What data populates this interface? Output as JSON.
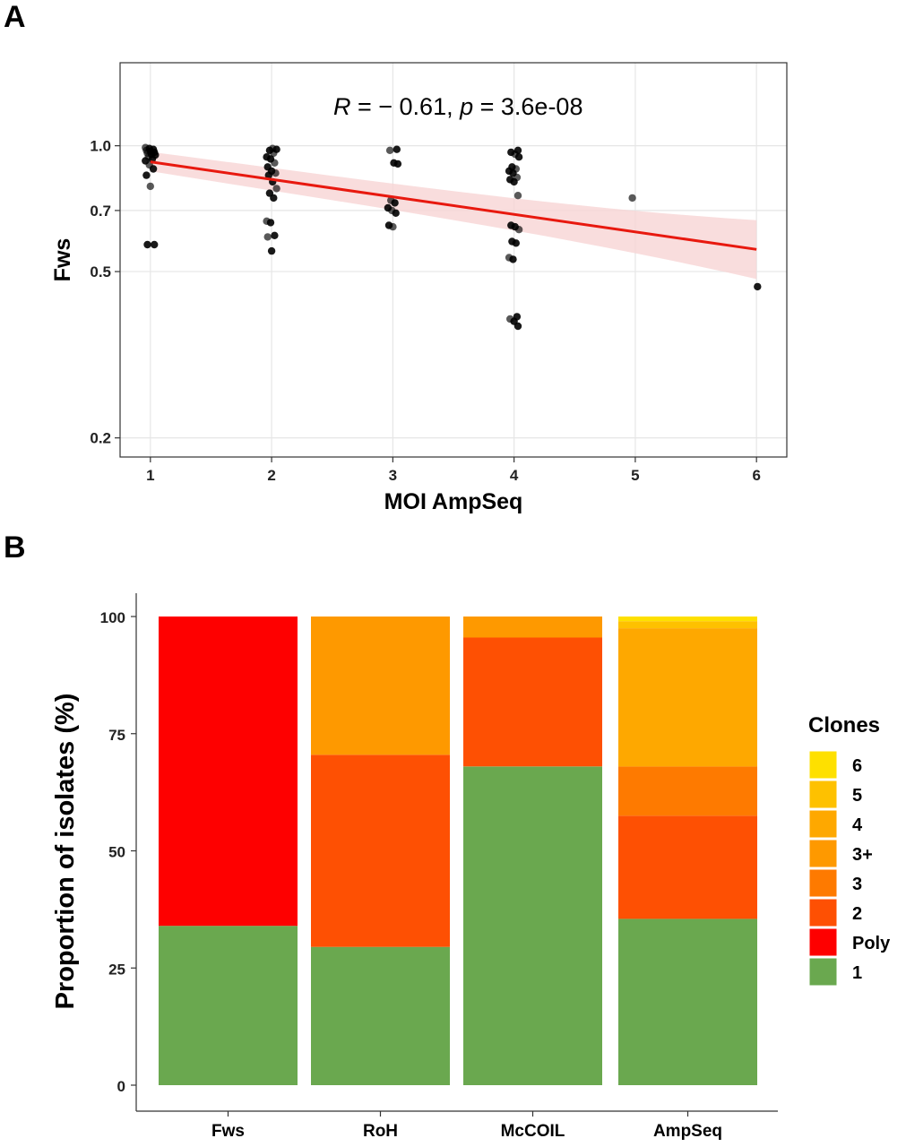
{
  "chart_data": [
    {
      "type": "scatter",
      "panel_label": "A",
      "xlabel": "MOI AmpSeq",
      "ylabel": "Fws",
      "y_scale": "log",
      "xlim": [
        0.75,
        6.25
      ],
      "ylim": [
        0.18,
        1.58
      ],
      "x_ticks": [
        1,
        2,
        3,
        4,
        5,
        6
      ],
      "y_ticks": [
        0.2,
        0.5,
        0.7,
        1.0
      ],
      "y_tick_labels": [
        "0.2",
        "0.5",
        "0.7",
        "1.0"
      ],
      "grid": true,
      "annotation": {
        "r_symbol": "R",
        "r_text": " = − 0.61, ",
        "p_symbol": "p",
        "p_text": " = 3.6e-08"
      },
      "points": [
        {
          "x": 1,
          "y": 0.99
        },
        {
          "x": 1,
          "y": 0.985
        },
        {
          "x": 1,
          "y": 0.98
        },
        {
          "x": 1,
          "y": 0.975
        },
        {
          "x": 1,
          "y": 0.97
        },
        {
          "x": 1,
          "y": 0.965
        },
        {
          "x": 1,
          "y": 0.96
        },
        {
          "x": 1,
          "y": 0.955
        },
        {
          "x": 1,
          "y": 0.95
        },
        {
          "x": 1,
          "y": 0.94
        },
        {
          "x": 1,
          "y": 0.93
        },
        {
          "x": 1,
          "y": 0.92
        },
        {
          "x": 1,
          "y": 0.9
        },
        {
          "x": 1,
          "y": 0.88
        },
        {
          "x": 1,
          "y": 0.85
        },
        {
          "x": 1,
          "y": 0.8
        },
        {
          "x": 1,
          "y": 0.58
        },
        {
          "x": 1,
          "y": 0.58
        },
        {
          "x": 2,
          "y": 0.985
        },
        {
          "x": 2,
          "y": 0.98
        },
        {
          "x": 2,
          "y": 0.975
        },
        {
          "x": 2,
          "y": 0.96
        },
        {
          "x": 2,
          "y": 0.94
        },
        {
          "x": 2,
          "y": 0.93
        },
        {
          "x": 2,
          "y": 0.91
        },
        {
          "x": 2,
          "y": 0.89
        },
        {
          "x": 2,
          "y": 0.87
        },
        {
          "x": 2,
          "y": 0.86
        },
        {
          "x": 2,
          "y": 0.85
        },
        {
          "x": 2,
          "y": 0.82
        },
        {
          "x": 2,
          "y": 0.79
        },
        {
          "x": 2,
          "y": 0.77
        },
        {
          "x": 2,
          "y": 0.75
        },
        {
          "x": 2,
          "y": 0.66
        },
        {
          "x": 2,
          "y": 0.655
        },
        {
          "x": 2,
          "y": 0.61
        },
        {
          "x": 2,
          "y": 0.605
        },
        {
          "x": 2,
          "y": 0.56
        },
        {
          "x": 3,
          "y": 0.98
        },
        {
          "x": 3,
          "y": 0.975
        },
        {
          "x": 3,
          "y": 0.91
        },
        {
          "x": 3,
          "y": 0.905
        },
        {
          "x": 3,
          "y": 0.74
        },
        {
          "x": 3,
          "y": 0.73
        },
        {
          "x": 3,
          "y": 0.71
        },
        {
          "x": 3,
          "y": 0.7
        },
        {
          "x": 3,
          "y": 0.69
        },
        {
          "x": 3,
          "y": 0.645
        },
        {
          "x": 3,
          "y": 0.64
        },
        {
          "x": 4,
          "y": 0.975
        },
        {
          "x": 4,
          "y": 0.965
        },
        {
          "x": 4,
          "y": 0.955
        },
        {
          "x": 4,
          "y": 0.94
        },
        {
          "x": 4,
          "y": 0.89
        },
        {
          "x": 4,
          "y": 0.88
        },
        {
          "x": 4,
          "y": 0.87
        },
        {
          "x": 4,
          "y": 0.86
        },
        {
          "x": 4,
          "y": 0.84
        },
        {
          "x": 4,
          "y": 0.83
        },
        {
          "x": 4,
          "y": 0.82
        },
        {
          "x": 4,
          "y": 0.76
        },
        {
          "x": 4,
          "y": 0.645
        },
        {
          "x": 4,
          "y": 0.64
        },
        {
          "x": 4,
          "y": 0.63
        },
        {
          "x": 4,
          "y": 0.59
        },
        {
          "x": 4,
          "y": 0.585
        },
        {
          "x": 4,
          "y": 0.54
        },
        {
          "x": 4,
          "y": 0.535
        },
        {
          "x": 4,
          "y": 0.39
        },
        {
          "x": 4,
          "y": 0.385
        },
        {
          "x": 4,
          "y": 0.38
        },
        {
          "x": 4,
          "y": 0.37
        },
        {
          "x": 5,
          "y": 0.75
        },
        {
          "x": 6,
          "y": 0.46
        }
      ],
      "fit_line": {
        "x": [
          1,
          6
        ],
        "y": [
          0.915,
          0.565
        ]
      },
      "confidence_band": {
        "x": [
          1,
          6
        ],
        "y_low": [
          0.875,
          0.49
        ],
        "y_high": [
          0.96,
          0.65
        ]
      },
      "colors": {
        "points": "#000000",
        "line": "#e8190f",
        "band": "#f7d4d4"
      }
    },
    {
      "type": "bar",
      "stacked": true,
      "panel_label": "B",
      "xlabel": "",
      "ylabel": "Proportion of isolates (%)",
      "ylim": [
        0,
        100
      ],
      "y_ticks": [
        0,
        25,
        50,
        75,
        100
      ],
      "categories": [
        "Fws",
        "RoH",
        "McCOIL",
        "AmpSeq"
      ],
      "legend": {
        "title": "Clones",
        "position": "right",
        "entries": [
          "6",
          "5",
          "4",
          "3+",
          "3",
          "2",
          "Poly",
          "1"
        ]
      },
      "series": [
        {
          "name": "1",
          "color": "#6aa84f",
          "values": [
            34,
            29.5,
            68,
            35.5
          ]
        },
        {
          "name": "Poly",
          "color": "#fe0000",
          "values": [
            66,
            0,
            0,
            0
          ]
        },
        {
          "name": "2",
          "color": "#fe5003",
          "values": [
            0,
            41,
            27.5,
            22
          ]
        },
        {
          "name": "3",
          "color": "#fe7a00",
          "values": [
            0,
            0,
            0,
            10.5
          ]
        },
        {
          "name": "3+",
          "color": "#fe9900",
          "values": [
            0,
            29.5,
            4.5,
            0
          ]
        },
        {
          "name": "4",
          "color": "#fea800",
          "values": [
            0,
            0,
            0,
            29.5
          ]
        },
        {
          "name": "5",
          "color": "#fec100",
          "values": [
            0,
            0,
            0,
            1.5
          ]
        },
        {
          "name": "6",
          "color": "#fee000",
          "values": [
            0,
            0,
            0,
            1
          ]
        }
      ]
    }
  ]
}
